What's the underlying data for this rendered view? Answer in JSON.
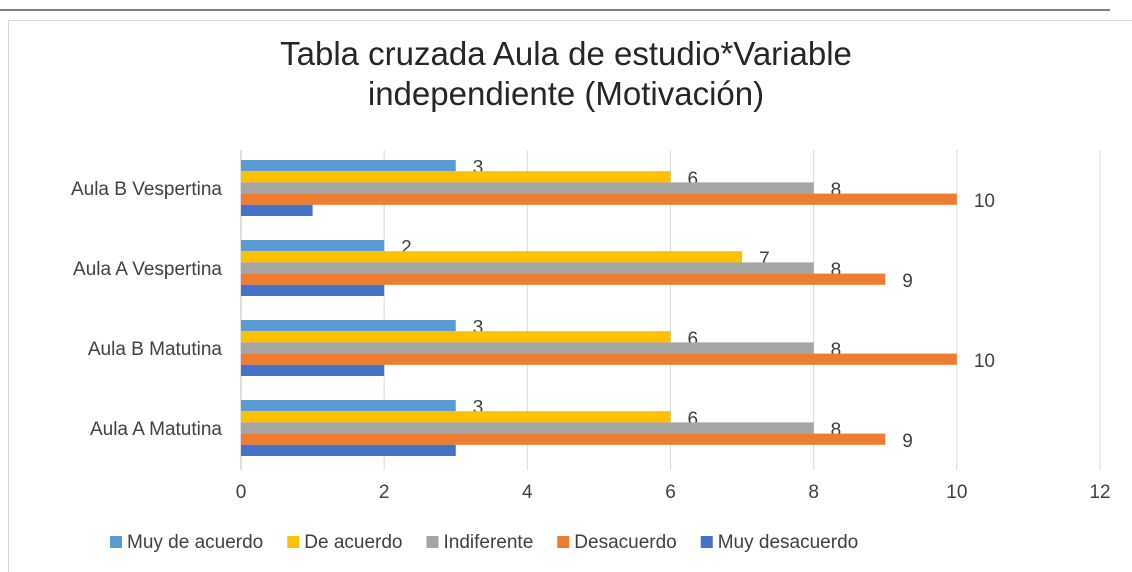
{
  "chart_data": {
    "type": "hbar",
    "title": "Tabla cruzada Aula de estudio*Variable independiente (Motivación)",
    "categories": [
      "Aula A Matutina",
      "Aula B Matutina",
      "Aula A Vespertina",
      "Aula B Vespertina"
    ],
    "series": [
      {
        "name": "Muy de acuerdo",
        "color": "#5b9bd5",
        "values": [
          3,
          3,
          2,
          3
        ],
        "labels": true
      },
      {
        "name": "De acuerdo",
        "color": "#ffc000",
        "values": [
          6,
          6,
          7,
          6
        ],
        "labels": true
      },
      {
        "name": "Indiferente",
        "color": "#a5a5a5",
        "values": [
          8,
          8,
          8,
          8
        ],
        "labels": true
      },
      {
        "name": "Desacuerdo",
        "color": "#ed7d31",
        "values": [
          9,
          10,
          9,
          10
        ],
        "labels": true
      },
      {
        "name": "Muy desacuerdo",
        "color": "#4472c4",
        "values": [
          3,
          2,
          2,
          1
        ],
        "labels": false
      }
    ],
    "xlim": [
      0,
      12
    ],
    "xticks": [
      0,
      2,
      4,
      6,
      8,
      10,
      12
    ],
    "grid": true,
    "legend": "bottom"
  }
}
